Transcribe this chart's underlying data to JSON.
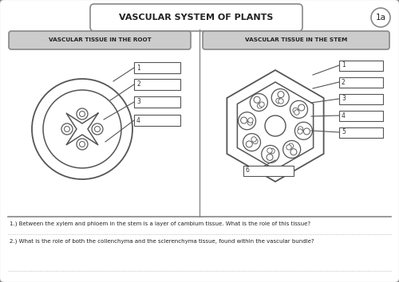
{
  "title": "VASCULAR SYSTEM OF PLANTS",
  "badge": "1a",
  "left_section_title": "VASCULAR TISSUE IN THE ROOT",
  "right_section_title": "VASCULAR TISSUE IN THE STEM",
  "question1": "1.) Between the xylem and phloem in the stem is a layer of cambium tissue. What is the role of this tissue?",
  "question2": "2.) What is the role of both the collenchyma and the sclerenchyma tissue, found within the vascular bundle?",
  "bg_color": "#f0f0eb",
  "border_color": "#888888",
  "box_color": "#cccccc",
  "line_color": "#555555"
}
